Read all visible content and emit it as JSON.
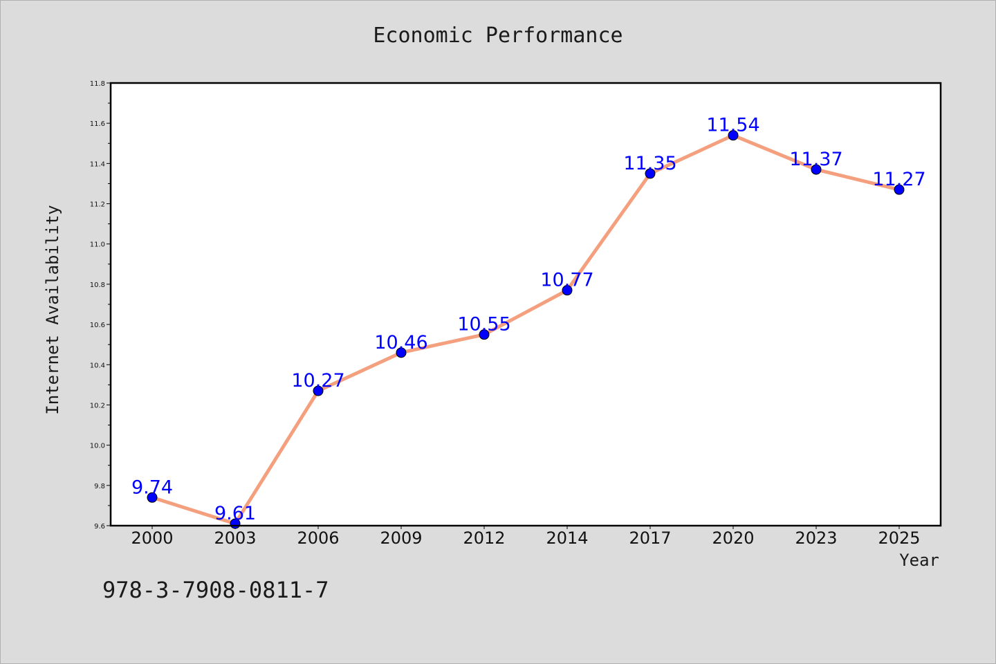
{
  "title": "Economic Performance",
  "watermark": "978-3-7908-0811-7",
  "chart_data": {
    "type": "line",
    "title": "Economic Performance",
    "xlabel": "Year",
    "ylabel": "Internet Availability",
    "categories": [
      "2000",
      "2003",
      "2006",
      "2009",
      "2012",
      "2014",
      "2017",
      "2020",
      "2023",
      "2025"
    ],
    "series": [
      {
        "values": [
          9.74,
          9.61,
          10.27,
          10.46,
          10.55,
          10.77,
          11.35,
          11.54,
          11.37,
          11.27
        ],
        "data_labels": [
          "9.74",
          "9.61",
          "10.27",
          "10.46",
          "10.55",
          "10.77",
          "11.35",
          "11.54",
          "11.37",
          "11.27"
        ]
      }
    ],
    "ylim": [
      9.6,
      11.8
    ],
    "yticks": [
      "9.6",
      "9.8",
      "10.0",
      "10.2",
      "10.4",
      "10.6",
      "10.8",
      "11.0",
      "11.2",
      "11.4",
      "11.6",
      "11.8"
    ],
    "grid": false,
    "legend": "none",
    "colors": {
      "line": "#f4a07e",
      "marker": "#0000ff",
      "label": "#0000ff"
    }
  }
}
